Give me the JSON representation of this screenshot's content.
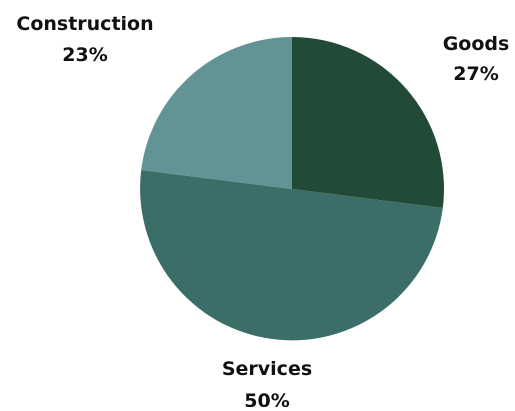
{
  "chart_data": {
    "type": "pie",
    "title": "",
    "start_angle_deg": 0,
    "direction": "clockwise",
    "slices": [
      {
        "label": "Goods",
        "value": 27,
        "value_label": "27%",
        "color": "#214b37"
      },
      {
        "label": "Services",
        "value": 50,
        "value_label": "50%",
        "color": "#3b6e68"
      },
      {
        "label": "Construction",
        "value": 23,
        "value_label": "23%",
        "color": "#629495"
      }
    ],
    "legend": "none"
  }
}
